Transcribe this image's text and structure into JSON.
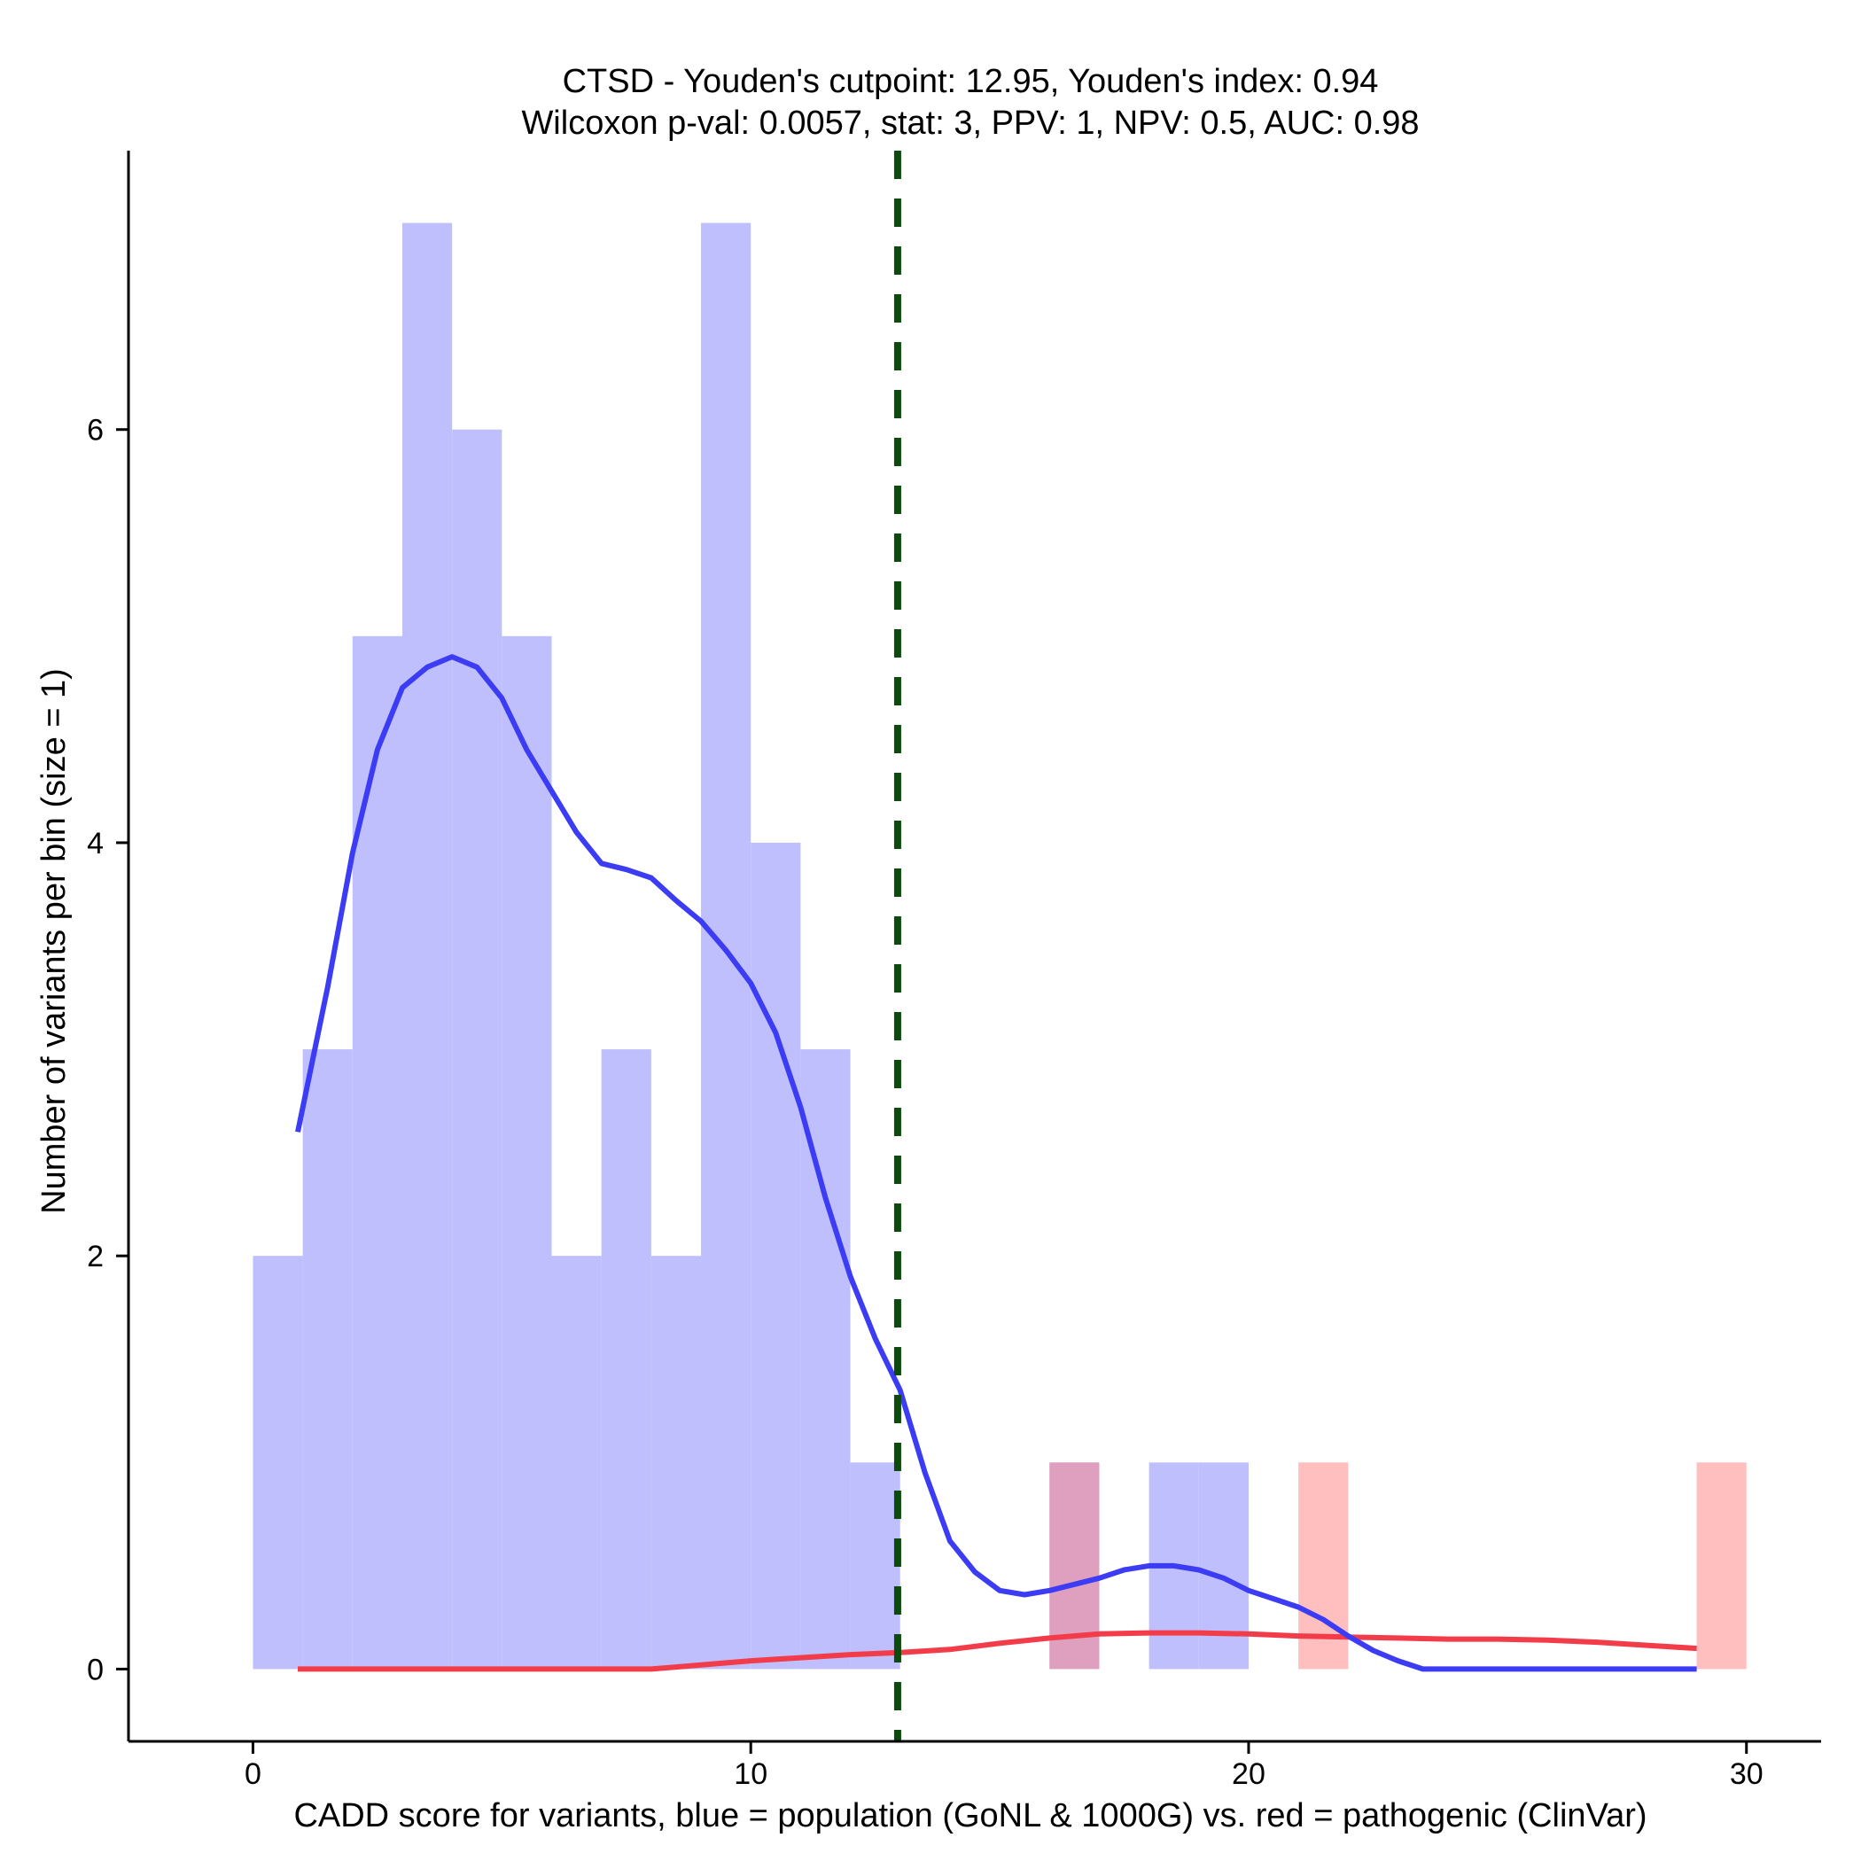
{
  "chart_data": {
    "type": "bar",
    "title_line1": "CTSD - Youden's cutpoint: 12.95, Youden's index: 0.94",
    "title_line2": "Wilcoxon p-val: 0.0057, stat: 3, PPV: 1, NPV: 0.5, AUC: 0.98",
    "xlabel": "CADD score for variants, blue = population (GoNL & 1000G) vs. red = pathogenic (ClinVar)",
    "ylabel": "Number of variants per bin (size = 1)",
    "xlim": [
      -2.5,
      31.5
    ],
    "ylim": [
      -0.35,
      7.35
    ],
    "x_ticks": [
      0,
      10,
      20,
      30
    ],
    "x_tick_labels": [
      "0",
      "10",
      "20",
      "30"
    ],
    "y_ticks": [
      0,
      2,
      4,
      6
    ],
    "y_tick_labels": [
      "0",
      "2",
      "4",
      "6"
    ],
    "bin_width": 1,
    "cutpoint": 12.95,
    "colors": {
      "population_fill": "#bfbffd",
      "pathogenic_fill": "#ffbfbf",
      "overlap_fill": "#cc8ec0",
      "population_line": "#3c3cf4",
      "pathogenic_line": "#f23c4a",
      "cutpoint_line": "#0d4a0d"
    },
    "series": [
      {
        "group": "population",
        "bins": [
          {
            "x0": 0,
            "count": 2
          },
          {
            "x0": 1,
            "count": 3
          },
          {
            "x0": 2,
            "count": 5
          },
          {
            "x0": 3,
            "count": 7
          },
          {
            "x0": 4,
            "count": 6
          },
          {
            "x0": 5,
            "count": 5
          },
          {
            "x0": 6,
            "count": 2
          },
          {
            "x0": 7,
            "count": 3
          },
          {
            "x0": 8,
            "count": 2
          },
          {
            "x0": 9,
            "count": 7
          },
          {
            "x0": 10,
            "count": 4
          },
          {
            "x0": 11,
            "count": 3
          },
          {
            "x0": 12,
            "count": 1
          },
          {
            "x0": 16,
            "count": 1
          },
          {
            "x0": 18,
            "count": 1
          },
          {
            "x0": 19,
            "count": 1
          }
        ],
        "density_curve": [
          [
            0.9,
            2.6
          ],
          [
            1.5,
            3.3
          ],
          [
            2.0,
            3.95
          ],
          [
            2.5,
            4.45
          ],
          [
            3.0,
            4.75
          ],
          [
            3.5,
            4.85
          ],
          [
            4.0,
            4.9
          ],
          [
            4.5,
            4.85
          ],
          [
            5.0,
            4.7
          ],
          [
            5.5,
            4.45
          ],
          [
            6.0,
            4.25
          ],
          [
            6.5,
            4.05
          ],
          [
            7.0,
            3.9
          ],
          [
            7.5,
            3.87
          ],
          [
            8.0,
            3.83
          ],
          [
            8.5,
            3.72
          ],
          [
            9.0,
            3.62
          ],
          [
            9.5,
            3.48
          ],
          [
            10.0,
            3.32
          ],
          [
            10.5,
            3.08
          ],
          [
            11.0,
            2.72
          ],
          [
            11.5,
            2.28
          ],
          [
            12.0,
            1.9
          ],
          [
            12.5,
            1.6
          ],
          [
            13.0,
            1.35
          ],
          [
            13.5,
            0.95
          ],
          [
            14.0,
            0.62
          ],
          [
            14.5,
            0.47
          ],
          [
            15.0,
            0.38
          ],
          [
            15.5,
            0.36
          ],
          [
            16.0,
            0.38
          ],
          [
            16.5,
            0.41
          ],
          [
            17.0,
            0.44
          ],
          [
            17.5,
            0.48
          ],
          [
            18.0,
            0.5
          ],
          [
            18.5,
            0.5
          ],
          [
            19.0,
            0.48
          ],
          [
            19.5,
            0.44
          ],
          [
            20.0,
            0.38
          ],
          [
            20.5,
            0.34
          ],
          [
            21.0,
            0.3
          ],
          [
            21.5,
            0.24
          ],
          [
            22.0,
            0.16
          ],
          [
            22.5,
            0.09
          ],
          [
            23.0,
            0.04
          ],
          [
            23.5,
            0.0
          ],
          [
            24.0,
            0.0
          ],
          [
            26.0,
            0.0
          ],
          [
            28.0,
            0.0
          ],
          [
            29.0,
            0.0
          ]
        ]
      },
      {
        "group": "pathogenic",
        "bins": [
          {
            "x0": 16,
            "count": 1
          },
          {
            "x0": 21,
            "count": 1
          },
          {
            "x0": 29,
            "count": 1
          }
        ],
        "density_curve": [
          [
            0.9,
            0.0
          ],
          [
            4.0,
            0.0
          ],
          [
            8.0,
            0.0
          ],
          [
            8.5,
            0.01
          ],
          [
            9.0,
            0.02
          ],
          [
            10.0,
            0.04
          ],
          [
            11.0,
            0.055
          ],
          [
            12.0,
            0.07
          ],
          [
            13.0,
            0.08
          ],
          [
            14.0,
            0.095
          ],
          [
            15.0,
            0.125
          ],
          [
            16.0,
            0.15
          ],
          [
            17.0,
            0.17
          ],
          [
            18.0,
            0.175
          ],
          [
            19.0,
            0.175
          ],
          [
            20.0,
            0.17
          ],
          [
            21.0,
            0.16
          ],
          [
            22.0,
            0.155
          ],
          [
            23.0,
            0.15
          ],
          [
            24.0,
            0.145
          ],
          [
            25.0,
            0.145
          ],
          [
            26.0,
            0.14
          ],
          [
            27.0,
            0.13
          ],
          [
            28.0,
            0.115
          ],
          [
            29.0,
            0.1
          ]
        ]
      }
    ]
  }
}
